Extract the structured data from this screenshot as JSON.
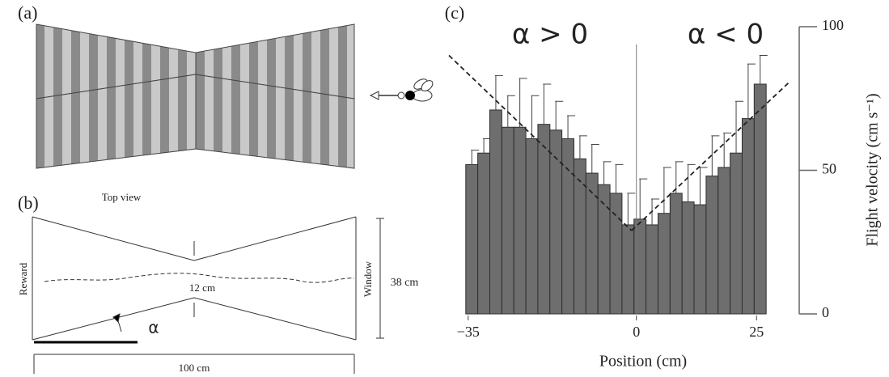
{
  "panel_a": {
    "label": "(a)"
  },
  "panel_b": {
    "label": "(b)",
    "top_view": "Top view",
    "reward": "Reward",
    "window": "Window",
    "height": "38 cm",
    "gap": "12 cm",
    "angle": "α",
    "length": "100 cm"
  },
  "chart_data": {
    "type": "histogram",
    "panel_label": "(c)",
    "annotations": [
      "α > 0",
      "α < 0"
    ],
    "x_label": "Position (cm)",
    "y_label": "Flight velocity (cm s⁻¹)",
    "bins": [
      -35.5,
      -33,
      -30.5,
      -28,
      -25.5,
      -23,
      -20.5,
      -18,
      -15.5,
      -13,
      -10.5,
      -8,
      -5.5,
      -3,
      -0.5,
      2,
      4.5,
      7,
      9.5,
      12,
      14.5,
      17,
      19.5,
      22,
      24.5,
      27
    ],
    "values": [
      52,
      56,
      71,
      65,
      65,
      61,
      66,
      64,
      61,
      54,
      49,
      45,
      42,
      31,
      33,
      31,
      35,
      42,
      39,
      38,
      48,
      51,
      56,
      68,
      80
    ],
    "errors": [
      5,
      5,
      12,
      11,
      17,
      15,
      14,
      10,
      8,
      8,
      10,
      8,
      10,
      11,
      14,
      9,
      16,
      11,
      13,
      13,
      14,
      12,
      18,
      19,
      10
    ],
    "color": "#6e6e6e",
    "fit_lines": [
      {
        "x": [
          -39,
          -1
        ],
        "y": [
          90,
          29
        ]
      },
      {
        "x": [
          -1,
          32
        ],
        "y": [
          29,
          81
        ]
      }
    ],
    "vline": 0,
    "xlim": [
      -39,
      30
    ],
    "xticks": [
      {
        "value": -35,
        "label": "−35"
      },
      0,
      25
    ],
    "ylim": [
      0,
      100
    ],
    "yticks": [
      0,
      50,
      100
    ]
  }
}
